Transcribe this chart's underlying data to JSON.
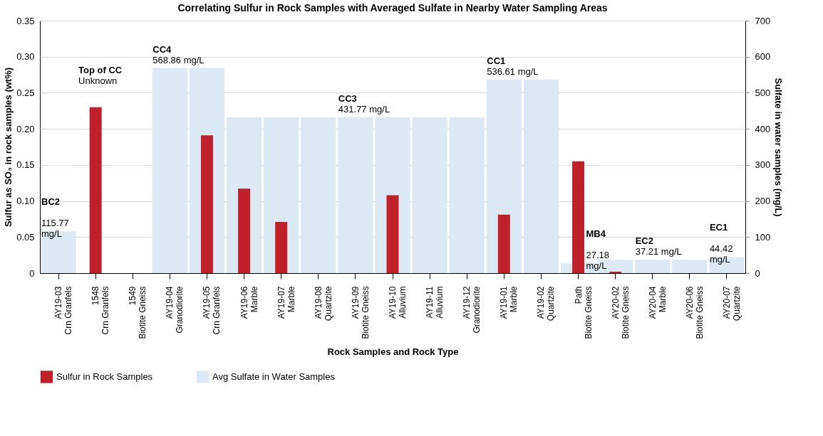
{
  "chart_data": {
    "type": "bar",
    "title": "Correlating Sulfur in Rock Samples with Averaged Sulfate in Nearby Water Sampling Areas",
    "xlabel": "Rock Samples and Rock Type",
    "ylabel": "Sulfur as SO₃ in rock samples (wt%)",
    "y2label": "Sulfate in water samples (mg/L)",
    "categories": [
      "AY19-03\nCrn Granfels",
      "1548\nCrn Granfels",
      "1549\nBiotite Gneiss",
      "AY19-04\nGranodiorite",
      "AY19-05\nCrn Granfels",
      "AY19-06\nMarble",
      "AY19-07\nMarble",
      "AY19-08\nQuartzite",
      "AY19-09\nBiotite Gneiss",
      "AY19-10\nAlluvium",
      "AY19-11\nAlluvium",
      "AY19-12\nGranodiorite",
      "AY19-01\nMarble",
      "AY19-02\nQuartzite",
      "Path\nBiotite Gneiss",
      "AY20-02\nBiotite Gneiss",
      "AY20-04\nMarble",
      "AY20-06\nBiotite Gneiss",
      "AY20-07\nQuartzite"
    ],
    "series": [
      {
        "name": "Sulfur in Rock Samples",
        "color": "#c0202a",
        "values": [
          0,
          0.23,
          0,
          0,
          0.191,
          0.117,
          0.071,
          0,
          0,
          0.108,
          0,
          0,
          0.081,
          0,
          0.155,
          0.002,
          0,
          0,
          0
        ]
      },
      {
        "name": "Avg Sulfate in Water Samples",
        "color": "#dce9f5",
        "axis": "y2",
        "values": [
          115.77,
          null,
          null,
          568.86,
          568.86,
          431.77,
          431.77,
          431.77,
          431.77,
          431.77,
          431.77,
          431.77,
          536.61,
          536.61,
          27.18,
          37.21,
          37.21,
          37.21,
          44.42
        ],
        "value_labels": [
          "BC2\n115.77\nmg/L",
          "Top of CC\nUnknown",
          null,
          "CC4\n568.86 mg/L",
          null,
          null,
          null,
          null,
          "CC3\n431.77 mg/L",
          null,
          null,
          null,
          "CC1\n536.61 mg/L",
          null,
          "MB4\n27.18\nmg/L",
          null,
          "EC2\n37.21 mg/L",
          null,
          "EC1\n44.42\nmg/L"
        ]
      }
    ],
    "ylim": [
      0,
      0.35
    ],
    "yticks": [
      0,
      {
        "value": 0.05,
        "label": "0.05"
      },
      {
        "value": 0.1,
        "label": "0.10"
      },
      {
        "value": 0.15,
        "label": "0.15"
      },
      {
        "value": 0.2,
        "label": "0.20"
      },
      {
        "value": 0.25,
        "label": "0.25"
      },
      {
        "value": 0.3,
        "label": "0.30"
      },
      {
        "value": 0.35,
        "label": "0.35"
      }
    ],
    "y2lim": [
      0,
      700
    ],
    "y2ticks": [
      0,
      100,
      200,
      300,
      400,
      500,
      600,
      700
    ],
    "grid": "y",
    "legend": "bottom"
  }
}
